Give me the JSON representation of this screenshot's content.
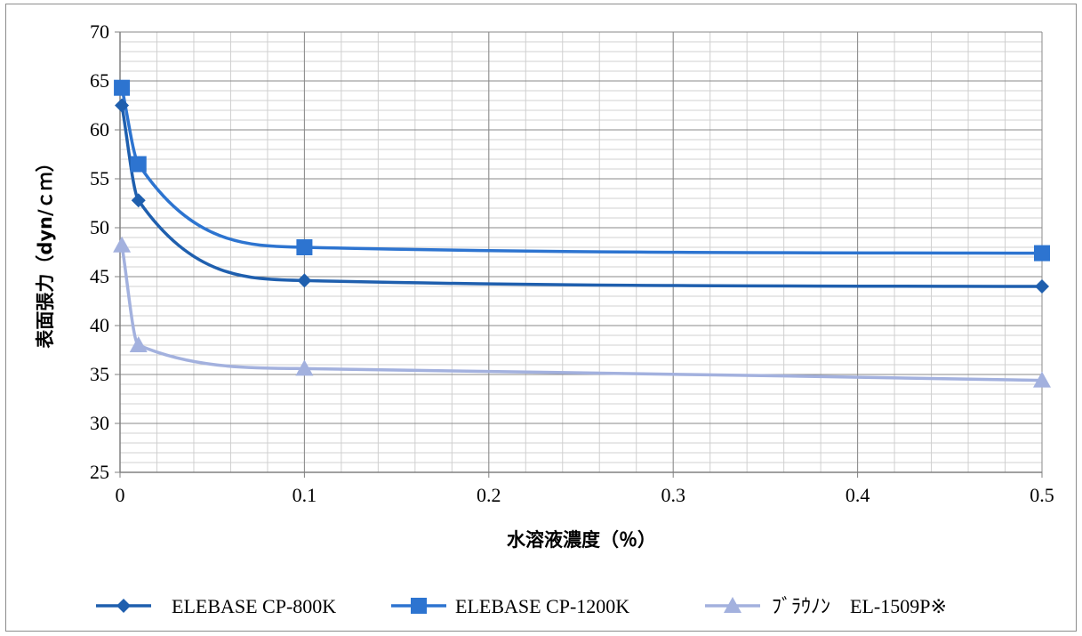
{
  "chart_data": {
    "type": "line",
    "title": "",
    "xlabel": "水溶液濃度（％）",
    "ylabel": "表面張力（dyn/ｃｍ）",
    "xlim": [
      0,
      0.5
    ],
    "ylim": [
      25,
      70
    ],
    "xticks": [
      0,
      0.1,
      0.2,
      0.3,
      0.4,
      0.5
    ],
    "xtick_labels": [
      "0",
      "0.1",
      "0.2",
      "0.3",
      "0.4",
      "0.5"
    ],
    "yticks": [
      25,
      30,
      35,
      40,
      45,
      50,
      55,
      60,
      65,
      70
    ],
    "ytick_labels": [
      "25",
      "30",
      "35",
      "40",
      "45",
      "50",
      "55",
      "60",
      "65",
      "70"
    ],
    "x_minor_step": 0.02,
    "y_minor_step": 1,
    "grid": true,
    "smooth": true,
    "legend_position": "bottom",
    "series": [
      {
        "name": "ELEBASE CP-800K",
        "marker": "diamond",
        "color": "#1f5fae",
        "x": [
          0.001,
          0.01,
          0.1,
          0.5
        ],
        "y": [
          62.5,
          52.8,
          44.6,
          44.0
        ]
      },
      {
        "name": "ELEBASE CP-1200K",
        "marker": "square",
        "color": "#2d74d0",
        "x": [
          0.001,
          0.01,
          0.1,
          0.5
        ],
        "y": [
          64.3,
          56.5,
          48.0,
          47.4
        ]
      },
      {
        "name": "ﾌﾞﾗｳﾉﾝ　EL-1509P※",
        "marker": "triangle",
        "color": "#a3b1de",
        "x": [
          0.001,
          0.01,
          0.1,
          0.5
        ],
        "y": [
          48.2,
          38.0,
          35.6,
          34.4
        ]
      }
    ]
  }
}
